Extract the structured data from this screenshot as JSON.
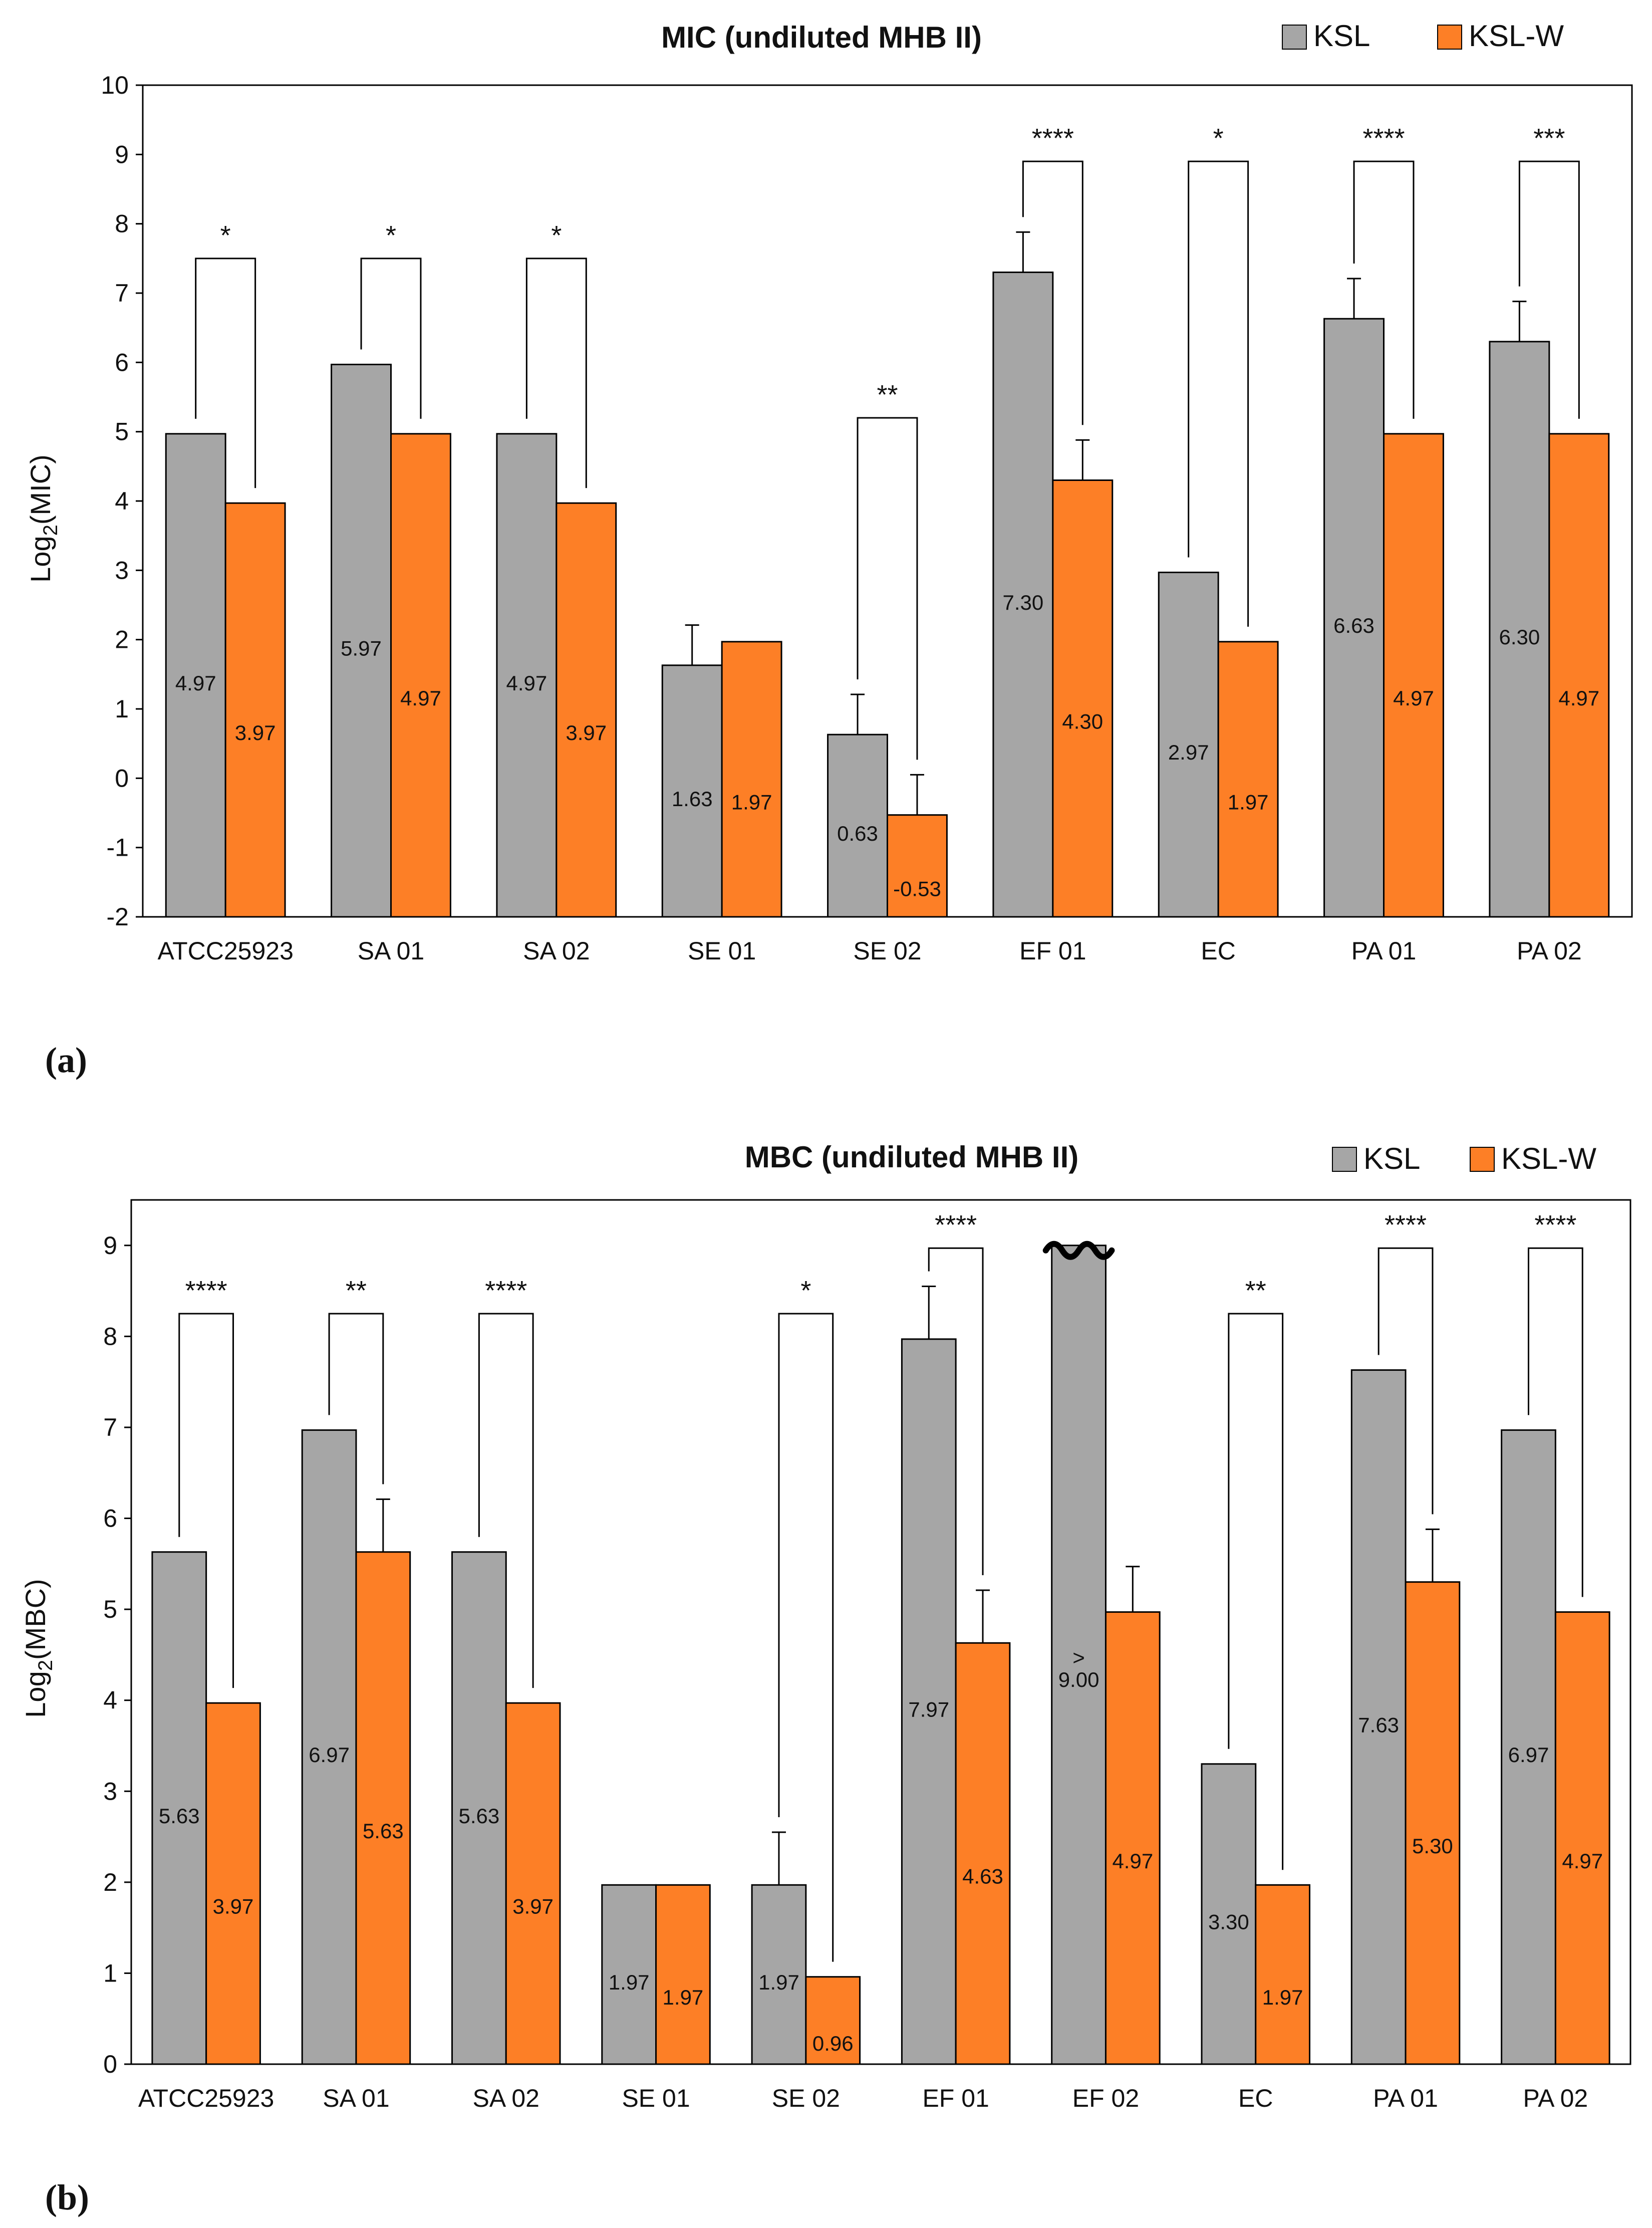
{
  "colors": {
    "ksl": "#a6a6a6",
    "kslw": "#fd7f26",
    "axis": "#000000"
  },
  "panels": [
    {
      "panel_label": "(a)",
      "title": "MIC (undiluted MHB II)",
      "legend": [
        "KSL",
        "KSL-W"
      ],
      "ylabel_main": "Log",
      "ylabel_sub": "2",
      "ylabel_rest": "(MIC)"
    },
    {
      "panel_label": "(b)",
      "title": "MBC (undiluted MHB II)",
      "legend": [
        "KSL",
        "KSL-W"
      ],
      "ylabel_main": "Log",
      "ylabel_sub": "2",
      "ylabel_rest": "(MBC)"
    }
  ],
  "chart_data": [
    {
      "type": "bar",
      "title": "MIC (undiluted MHB II)",
      "ylabel": "Log2(MIC)",
      "ylim": [
        -2,
        10
      ],
      "yticks": [
        -2,
        -1,
        0,
        1,
        2,
        3,
        4,
        5,
        6,
        7,
        8,
        9,
        10
      ],
      "categories": [
        "ATCC25923",
        "SA 01",
        "SA 02",
        "SE 01",
        "SE 02",
        "EF 01",
        "EC",
        "PA 01",
        "PA 02"
      ],
      "series": [
        {
          "name": "KSL",
          "values": [
            4.97,
            5.97,
            4.97,
            1.63,
            0.63,
            7.3,
            2.97,
            6.63,
            6.3
          ],
          "labels": [
            "4.97",
            "5.97",
            "4.97",
            "1.63",
            "0.63",
            "7.30",
            "2.97",
            "6.63",
            "6.30"
          ],
          "errors": [
            0,
            0,
            0,
            0.58,
            0.58,
            0.58,
            0,
            0.58,
            0.58
          ]
        },
        {
          "name": "KSL-W",
          "values": [
            3.97,
            4.97,
            3.97,
            1.97,
            -0.53,
            4.3,
            1.97,
            4.97,
            4.97
          ],
          "labels": [
            "3.97",
            "4.97",
            "3.97",
            "1.97",
            "-0.53",
            "4.30",
            "1.97",
            "4.97",
            "4.97"
          ],
          "errors": [
            0,
            0,
            0,
            0,
            0.58,
            0.58,
            0,
            0,
            0
          ]
        }
      ],
      "significance": [
        {
          "index": 0,
          "stars": "*",
          "height": 7.5
        },
        {
          "index": 1,
          "stars": "*",
          "height": 7.5
        },
        {
          "index": 2,
          "stars": "*",
          "height": 7.5
        },
        {
          "index": 4,
          "stars": "**",
          "height": 5.2
        },
        {
          "index": 5,
          "stars": "****",
          "height": 8.9
        },
        {
          "index": 6,
          "stars": "*",
          "height": 8.9
        },
        {
          "index": 7,
          "stars": "****",
          "height": 8.9
        },
        {
          "index": 8,
          "stars": "***",
          "height": 8.9
        }
      ]
    },
    {
      "type": "bar",
      "title": "MBC (undiluted MHB II)",
      "ylabel": "Log2(MBC)",
      "ylim": [
        0,
        9.5
      ],
      "yticks": [
        0,
        1,
        2,
        3,
        4,
        5,
        6,
        7,
        8,
        9
      ],
      "categories": [
        "ATCC25923",
        "SA 01",
        "SA 02",
        "SE 01",
        "SE 02",
        "EF 01",
        "EF 02",
        "EC",
        "PA 01",
        "PA 02"
      ],
      "series": [
        {
          "name": "KSL",
          "values": [
            5.63,
            6.97,
            5.63,
            1.97,
            1.97,
            7.97,
            9.0,
            3.3,
            7.63,
            6.97
          ],
          "labels": [
            "5.63",
            "6.97",
            "5.63",
            "1.97",
            "1.97",
            "7.97",
            "> 9.00",
            "3.30",
            "7.63",
            "6.97"
          ],
          "errors": [
            0,
            0,
            0,
            0,
            0.58,
            0.58,
            0,
            0,
            0,
            0
          ]
        },
        {
          "name": "KSL-W",
          "values": [
            3.97,
            5.63,
            3.97,
            1.97,
            0.96,
            4.63,
            4.97,
            1.97,
            5.3,
            4.97
          ],
          "labels": [
            "3.97",
            "5.63",
            "3.97",
            "1.97",
            "0.96",
            "4.63",
            "4.97",
            "1.97",
            "5.30",
            "4.97"
          ],
          "errors": [
            0,
            0.58,
            0,
            0,
            0,
            0.58,
            0.5,
            0,
            0.58,
            0
          ]
        }
      ],
      "significance": [
        {
          "index": 0,
          "stars": "****",
          "height": 8.25
        },
        {
          "index": 1,
          "stars": "**",
          "height": 8.25
        },
        {
          "index": 2,
          "stars": "****",
          "height": 8.25
        },
        {
          "index": 4,
          "stars": "*",
          "height": 8.25
        },
        {
          "index": 5,
          "stars": "****",
          "height": 8.97
        },
        {
          "index": 7,
          "stars": "**",
          "height": 8.25
        },
        {
          "index": 8,
          "stars": "****",
          "height": 8.97
        },
        {
          "index": 9,
          "stars": "****",
          "height": 8.97
        }
      ],
      "broken_bar_index": 6
    }
  ]
}
